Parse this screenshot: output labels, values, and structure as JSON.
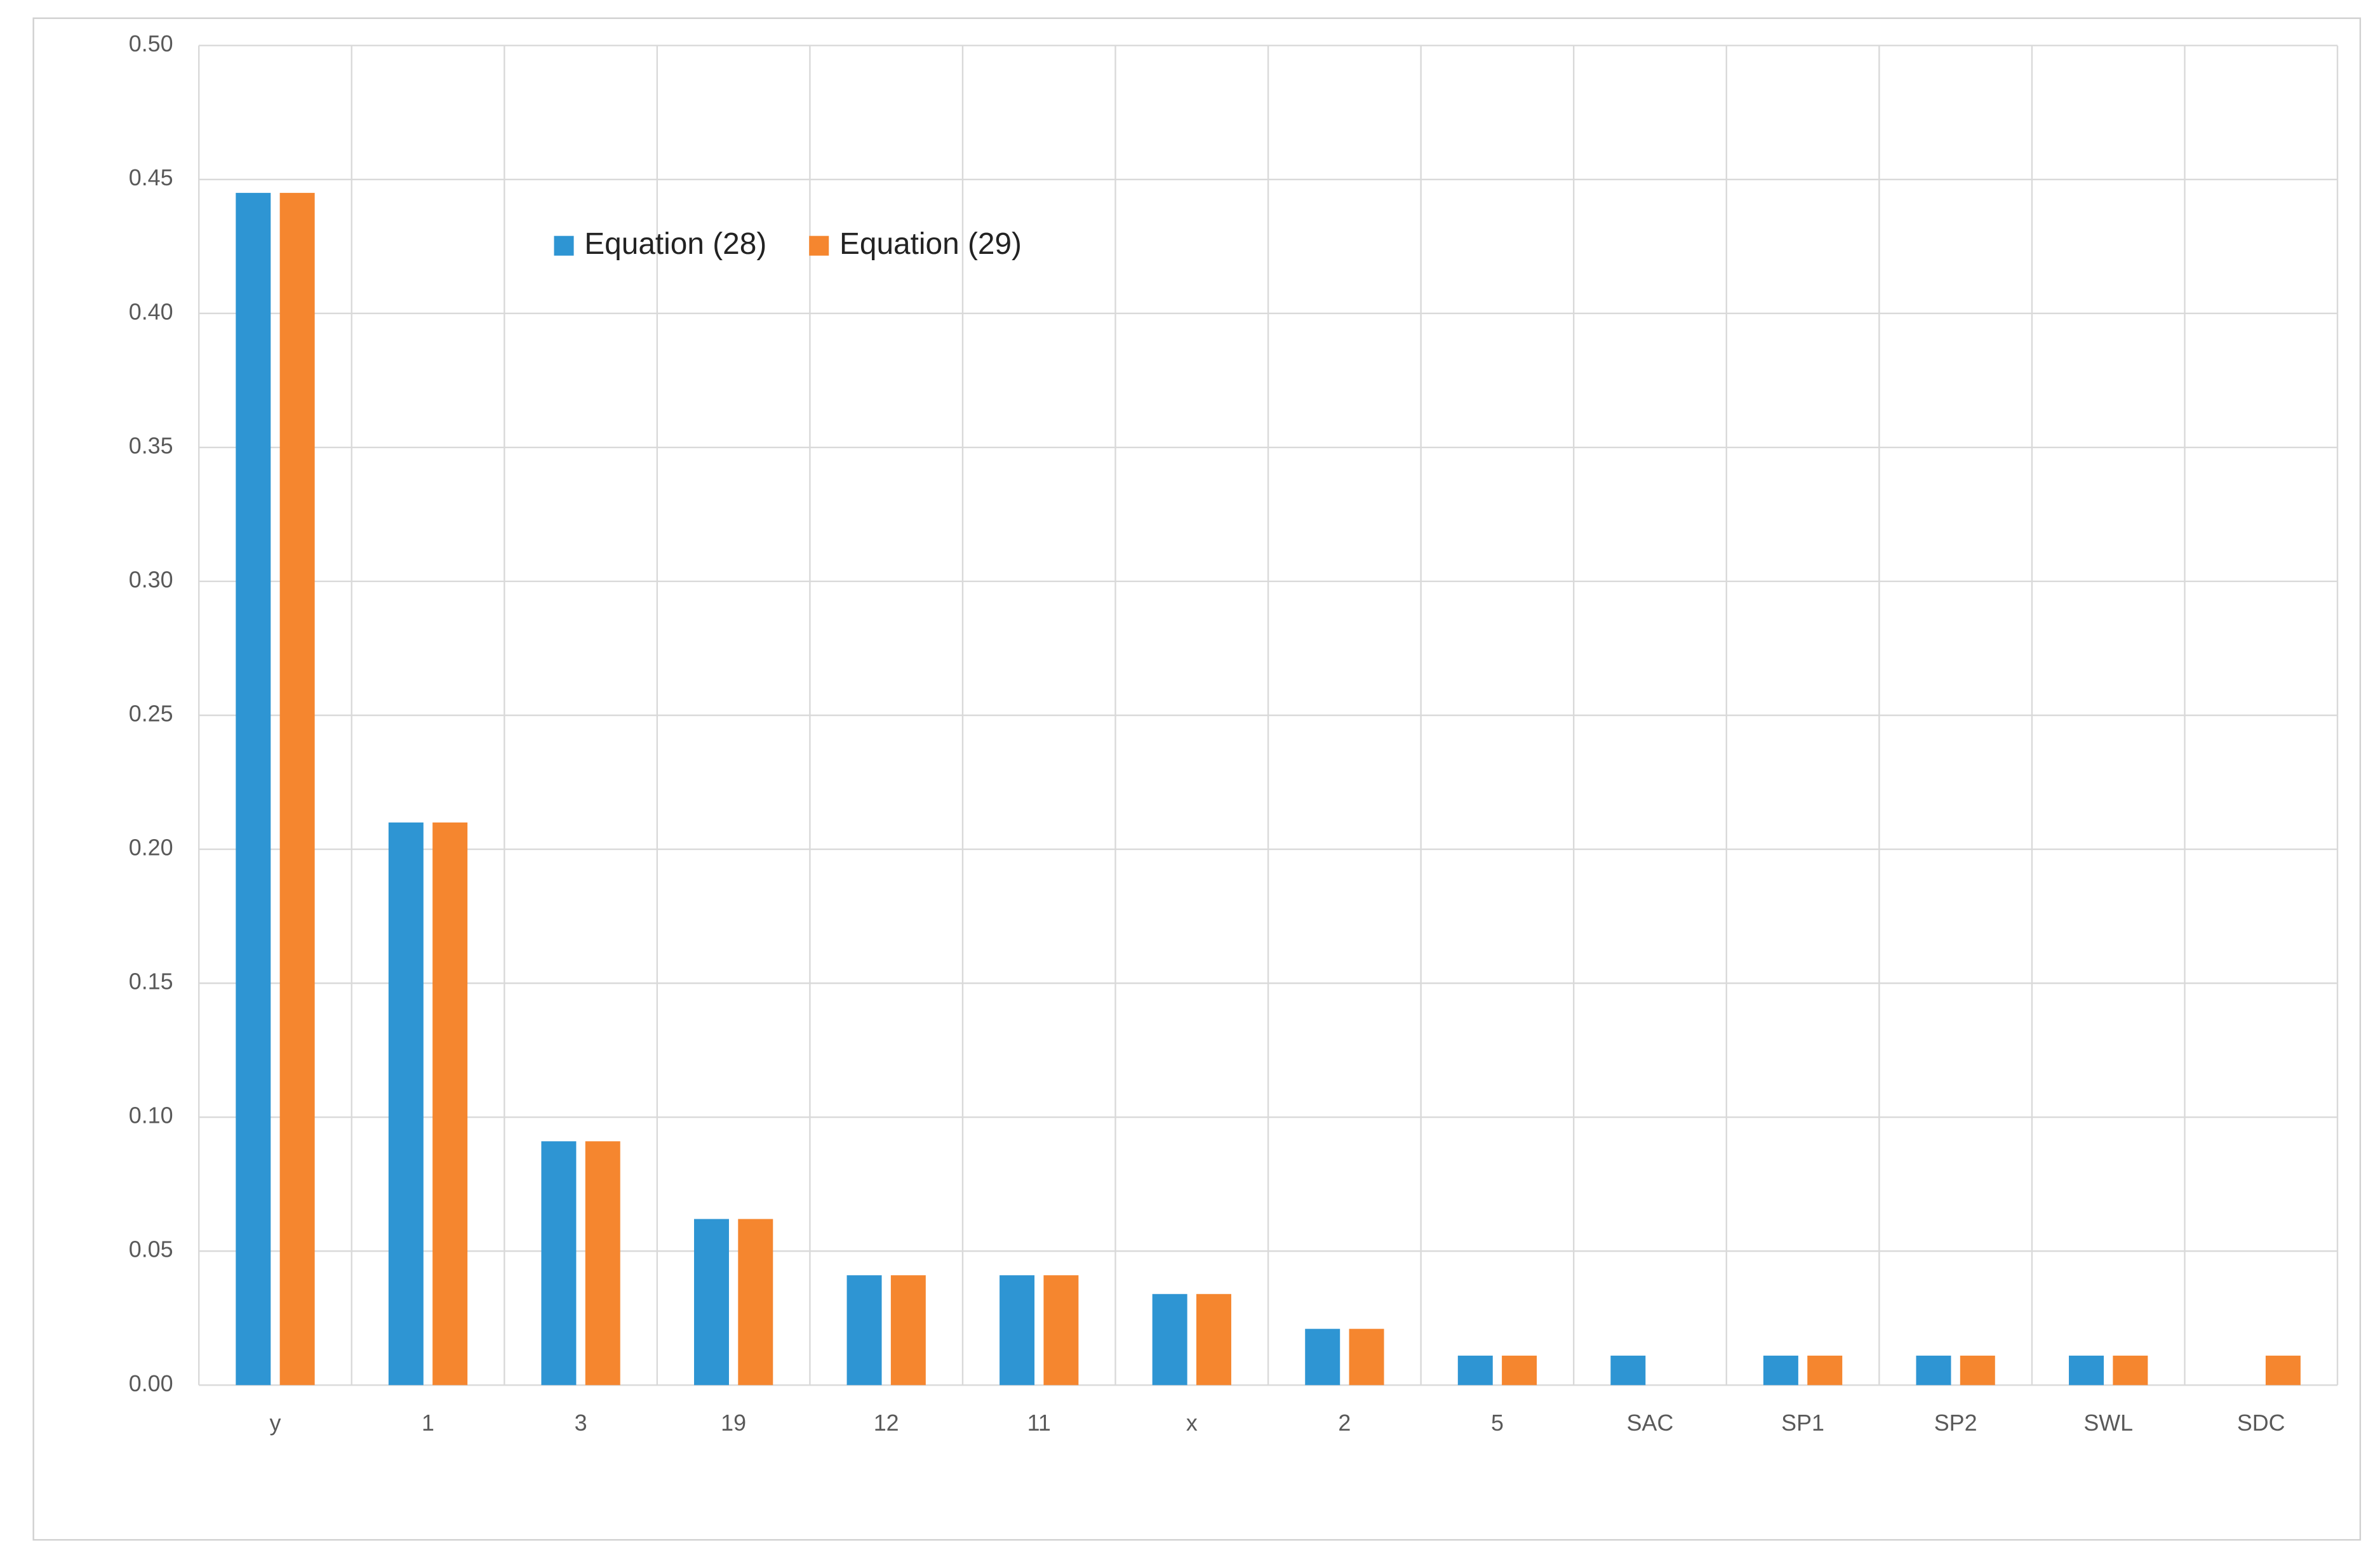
{
  "chart_data": {
    "type": "bar",
    "categories": [
      "y",
      "1",
      "3",
      "19",
      "12",
      "11",
      "x",
      "2",
      "5",
      "SAC",
      "SP1",
      "SP2",
      "SWL",
      "SDC"
    ],
    "series": [
      {
        "name": "Equation (28)",
        "color": "#2e95d3",
        "values": [
          0.445,
          0.21,
          0.091,
          0.062,
          0.041,
          0.041,
          0.034,
          0.021,
          0.011,
          0.011,
          0.011,
          0.011,
          0.011,
          0
        ]
      },
      {
        "name": "Equation (29)",
        "color": "#f5862f",
        "values": [
          0.445,
          0.21,
          0.091,
          0.062,
          0.041,
          0.041,
          0.034,
          0.021,
          0.011,
          0,
          0.011,
          0.011,
          0.011,
          0.011
        ]
      }
    ],
    "ylim": [
      0,
      0.5
    ],
    "yticks": [
      {
        "value": 0,
        "label": "0.00"
      },
      {
        "value": 0.05,
        "label": "0.05"
      },
      {
        "value": 0.1,
        "label": "0.10"
      },
      {
        "value": 0.15,
        "label": "0.15"
      },
      {
        "value": 0.2,
        "label": "0.20"
      },
      {
        "value": 0.25,
        "label": "0.25"
      },
      {
        "value": 0.3,
        "label": "0.30"
      },
      {
        "value": 0.35,
        "label": "0.35"
      },
      {
        "value": 0.4,
        "label": "0.40"
      },
      {
        "value": 0.45,
        "label": "0.45"
      },
      {
        "value": 0.5,
        "label": "0.50"
      }
    ],
    "grid": true
  }
}
